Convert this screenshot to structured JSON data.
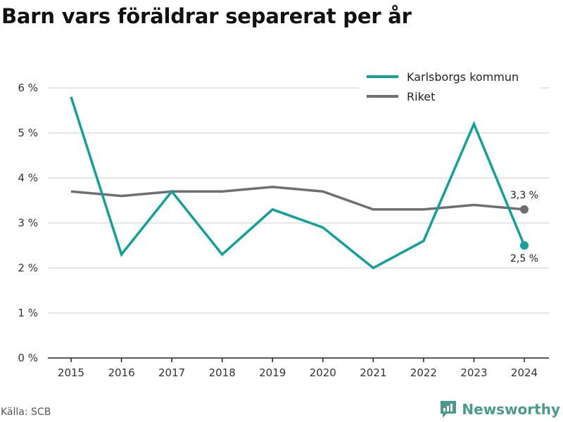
{
  "title": "Barn vars föräldrar separerat per år",
  "source": "Källa: SCB",
  "brand": "Newsworthy",
  "colors": {
    "karlsborg": "#12a19a",
    "riket": "#6e6e73",
    "brand": "#4a9b8e",
    "grid": "#dddddd"
  },
  "chart_data": {
    "type": "line",
    "title": "Barn vars föräldrar separerat per år",
    "x": [
      "2015",
      "2016",
      "2017",
      "2018",
      "2019",
      "2020",
      "2021",
      "2022",
      "2023",
      "2024"
    ],
    "ylim": [
      0,
      6
    ],
    "yticks": [
      0,
      1,
      2,
      3,
      4,
      5,
      6
    ],
    "ytick_labels": [
      "0 %",
      "1 %",
      "2 %",
      "3 %",
      "4 %",
      "5 %",
      "6 %"
    ],
    "grid": true,
    "legend_position": "top-right",
    "series": [
      {
        "name": "Karlsborgs kommun",
        "color": "#12a19a",
        "values": [
          5.8,
          2.3,
          3.7,
          2.3,
          3.3,
          2.9,
          2.0,
          2.6,
          5.2,
          2.5
        ],
        "end_label": "2,5 %"
      },
      {
        "name": "Riket",
        "color": "#6e6e73",
        "values": [
          3.7,
          3.6,
          3.7,
          3.7,
          3.8,
          3.7,
          3.3,
          3.3,
          3.4,
          3.3
        ],
        "end_label": "3,3 %"
      }
    ]
  }
}
